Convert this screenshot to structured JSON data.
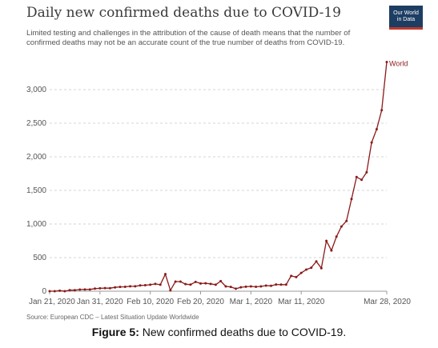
{
  "chart_data": {
    "type": "line",
    "title": "Daily new confirmed deaths due to COVID-19",
    "subtitle": "Limited testing and challenges in the attribution of the cause of death means that the number of confirmed deaths may not be an accurate count of the true number of deaths from COVID-19.",
    "source": "Source: European CDC – Latest Situation Update Worldwide",
    "ylim": [
      0,
      3500
    ],
    "yticks": [
      0,
      500,
      1000,
      1500,
      2000,
      2500,
      3000
    ],
    "ytick_labels": [
      "0",
      "500",
      "1,000",
      "1,500",
      "2,000",
      "2,500",
      "3,000"
    ],
    "x_start": "2020-01-21",
    "x_end": "2020-03-28",
    "xtick_labels": [
      {
        "date": "2020-01-21",
        "label": "Jan 21, 2020"
      },
      {
        "date": "2020-01-31",
        "label": "Jan 31, 2020"
      },
      {
        "date": "2020-02-10",
        "label": "Feb 10, 2020"
      },
      {
        "date": "2020-02-20",
        "label": "Feb 20, 2020"
      },
      {
        "date": "2020-03-01",
        "label": "Mar 1, 2020"
      },
      {
        "date": "2020-03-11",
        "label": "Mar 11, 2020"
      },
      {
        "date": "2020-03-28",
        "label": "Mar 28, 2020"
      }
    ],
    "grid": true,
    "series": [
      {
        "name": "World",
        "color": "#8b1a1a",
        "points": [
          [
            "2020-01-21",
            0
          ],
          [
            "2020-01-22",
            0
          ],
          [
            "2020-01-23",
            8
          ],
          [
            "2020-01-24",
            0
          ],
          [
            "2020-01-25",
            15
          ],
          [
            "2020-01-26",
            15
          ],
          [
            "2020-01-27",
            24
          ],
          [
            "2020-01-28",
            26
          ],
          [
            "2020-01-29",
            26
          ],
          [
            "2020-01-30",
            38
          ],
          [
            "2020-01-31",
            43
          ],
          [
            "2020-02-01",
            46
          ],
          [
            "2020-02-02",
            45
          ],
          [
            "2020-02-03",
            57
          ],
          [
            "2020-02-04",
            64
          ],
          [
            "2020-02-05",
            66
          ],
          [
            "2020-02-06",
            73
          ],
          [
            "2020-02-07",
            73
          ],
          [
            "2020-02-08",
            86
          ],
          [
            "2020-02-09",
            89
          ],
          [
            "2020-02-10",
            97
          ],
          [
            "2020-02-11",
            108
          ],
          [
            "2020-02-12",
            97
          ],
          [
            "2020-02-13",
            254
          ],
          [
            "2020-02-14",
            13
          ],
          [
            "2020-02-15",
            143
          ],
          [
            "2020-02-16",
            143
          ],
          [
            "2020-02-17",
            105
          ],
          [
            "2020-02-18",
            98
          ],
          [
            "2020-02-19",
            139
          ],
          [
            "2020-02-20",
            115
          ],
          [
            "2020-02-21",
            118
          ],
          [
            "2020-02-22",
            109
          ],
          [
            "2020-02-23",
            97
          ],
          [
            "2020-02-24",
            150
          ],
          [
            "2020-02-25",
            71
          ],
          [
            "2020-02-26",
            64
          ],
          [
            "2020-02-27",
            37
          ],
          [
            "2020-02-28",
            58
          ],
          [
            "2020-02-29",
            67
          ],
          [
            "2020-03-01",
            72
          ],
          [
            "2020-03-02",
            66
          ],
          [
            "2020-03-03",
            71
          ],
          [
            "2020-03-04",
            83
          ],
          [
            "2020-03-05",
            80
          ],
          [
            "2020-03-06",
            100
          ],
          [
            "2020-03-07",
            98
          ],
          [
            "2020-03-08",
            98
          ],
          [
            "2020-03-09",
            228
          ],
          [
            "2020-03-10",
            210
          ],
          [
            "2020-03-11",
            272
          ],
          [
            "2020-03-12",
            322
          ],
          [
            "2020-03-13",
            350
          ],
          [
            "2020-03-14",
            443
          ],
          [
            "2020-03-15",
            343
          ],
          [
            "2020-03-16",
            749
          ],
          [
            "2020-03-17",
            606
          ],
          [
            "2020-03-18",
            812
          ],
          [
            "2020-03-19",
            963
          ],
          [
            "2020-03-20",
            1045
          ],
          [
            "2020-03-21",
            1372
          ],
          [
            "2020-03-22",
            1699
          ],
          [
            "2020-03-23",
            1658
          ],
          [
            "2020-03-24",
            1769
          ],
          [
            "2020-03-25",
            2213
          ],
          [
            "2020-03-26",
            2410
          ],
          [
            "2020-03-27",
            2693
          ],
          [
            "2020-03-28",
            3411
          ]
        ]
      }
    ]
  },
  "figure_caption": {
    "label": "Figure 5:",
    "text": " New confirmed deaths due to COVID-19."
  },
  "logo": {
    "line1": "Our World",
    "line2": "in Data"
  }
}
